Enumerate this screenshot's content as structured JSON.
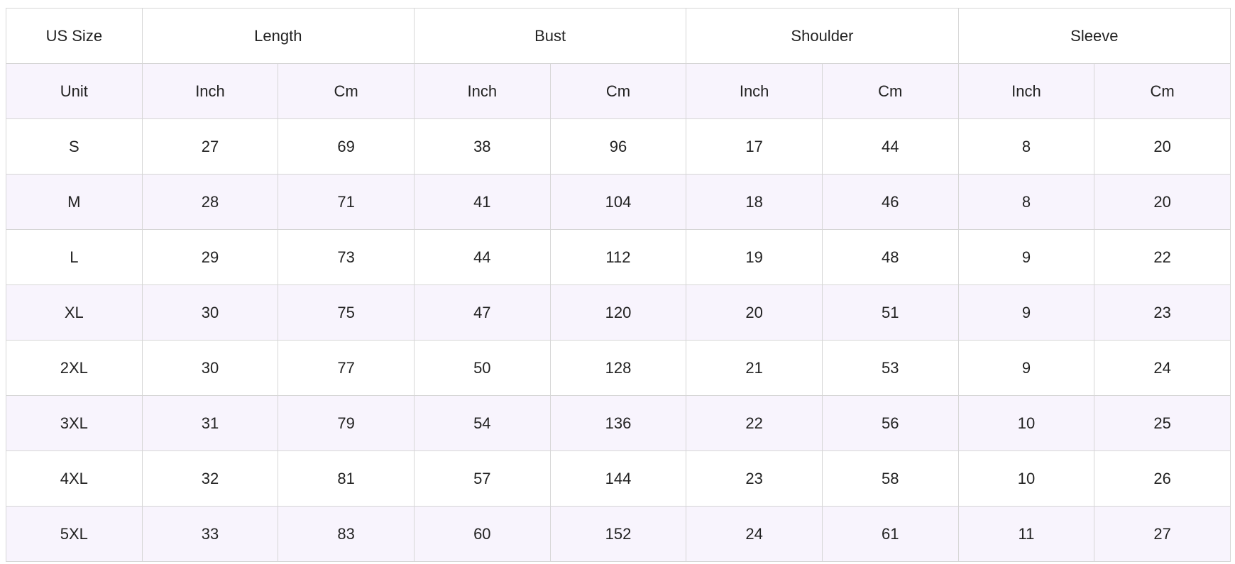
{
  "table": {
    "size_header": "US Size",
    "groups": [
      "Length",
      "Bust",
      "Shoulder",
      "Sleeve"
    ],
    "unit_row": {
      "label": "Unit",
      "units": [
        "Inch",
        "Cm",
        "Inch",
        "Cm",
        "Inch",
        "Cm",
        "Inch",
        "Cm"
      ]
    },
    "rows": [
      {
        "size": "S",
        "values": [
          "27",
          "69",
          "38",
          "96",
          "17",
          "44",
          "8",
          "20"
        ]
      },
      {
        "size": "M",
        "values": [
          "28",
          "71",
          "41",
          "104",
          "18",
          "46",
          "8",
          "20"
        ]
      },
      {
        "size": "L",
        "values": [
          "29",
          "73",
          "44",
          "112",
          "19",
          "48",
          "9",
          "22"
        ]
      },
      {
        "size": "XL",
        "values": [
          "30",
          "75",
          "47",
          "120",
          "20",
          "51",
          "9",
          "23"
        ]
      },
      {
        "size": "2XL",
        "values": [
          "30",
          "77",
          "50",
          "128",
          "21",
          "53",
          "9",
          "24"
        ]
      },
      {
        "size": "3XL",
        "values": [
          "31",
          "79",
          "54",
          "136",
          "22",
          "56",
          "10",
          "25"
        ]
      },
      {
        "size": "4XL",
        "values": [
          "32",
          "81",
          "57",
          "144",
          "23",
          "58",
          "10",
          "26"
        ]
      },
      {
        "size": "5XL",
        "values": [
          "33",
          "83",
          "60",
          "152",
          "24",
          "61",
          "11",
          "27"
        ]
      }
    ]
  },
  "colors": {
    "border": "#d6d6d6",
    "stripe": "#f8f4fd",
    "background": "#ffffff",
    "text": "#222222"
  }
}
